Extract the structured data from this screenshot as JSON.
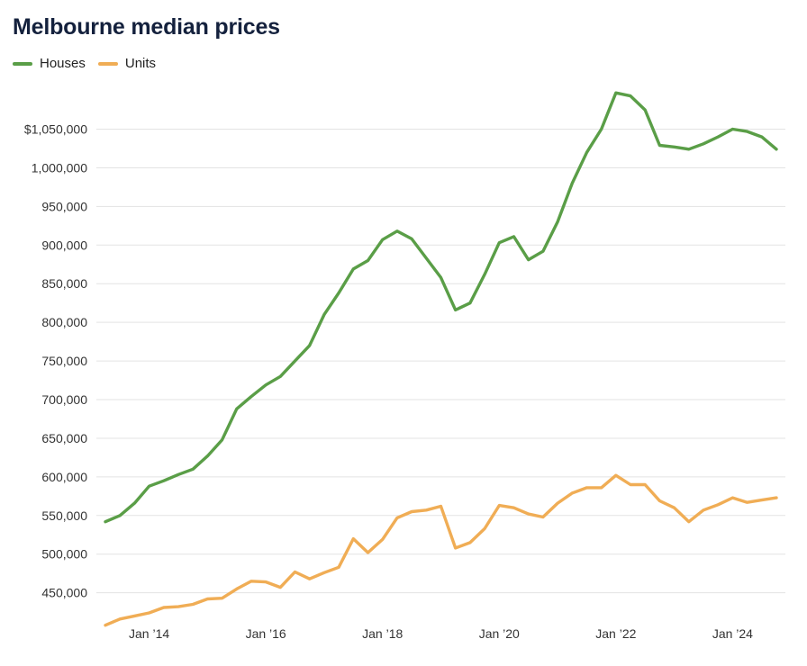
{
  "chart_data": {
    "type": "line",
    "title": "Melbourne median prices",
    "xlabel": "",
    "ylabel": "",
    "legend_position": "top-left",
    "grid": true,
    "ylim": [
      410000,
      1110000
    ],
    "x_start": "2013-04",
    "x_end": "2024-10",
    "x_step_months": 3,
    "x_ticks": [
      {
        "label": "Jan ’14",
        "x": "2014-01"
      },
      {
        "label": "Jan ’16",
        "x": "2016-01"
      },
      {
        "label": "Jan ’18",
        "x": "2018-01"
      },
      {
        "label": "Jan ’20",
        "x": "2020-01"
      },
      {
        "label": "Jan ’22",
        "x": "2022-01"
      },
      {
        "label": "Jan ’24",
        "x": "2024-01"
      }
    ],
    "y_ticks": [
      {
        "value": 450000,
        "label": "450,000"
      },
      {
        "value": 500000,
        "label": "500,000"
      },
      {
        "value": 550000,
        "label": "550,000"
      },
      {
        "value": 600000,
        "label": "600,000"
      },
      {
        "value": 650000,
        "label": "650,000"
      },
      {
        "value": 700000,
        "label": "700,000"
      },
      {
        "value": 750000,
        "label": "750,000"
      },
      {
        "value": 800000,
        "label": "800,000"
      },
      {
        "value": 850000,
        "label": "850,000"
      },
      {
        "value": 900000,
        "label": "900,000"
      },
      {
        "value": 950000,
        "label": "950,000"
      },
      {
        "value": 1000000,
        "label": "1,000,000"
      },
      {
        "value": 1050000,
        "label": "$1,050,000"
      }
    ],
    "series": [
      {
        "name": "Houses",
        "color": "#5a9e47",
        "values": [
          542000,
          550000,
          566000,
          588000,
          595000,
          603000,
          610000,
          627000,
          648000,
          688000,
          704000,
          719000,
          730000,
          750000,
          770000,
          810000,
          838000,
          869000,
          880000,
          907000,
          918000,
          908000,
          883000,
          858000,
          816000,
          825000,
          862000,
          903000,
          911000,
          881000,
          892000,
          930000,
          980000,
          1020000,
          1050000,
          1097000,
          1093000,
          1075000,
          1029000,
          1027000,
          1024000,
          1031000,
          1040000,
          1050000,
          1047000,
          1040000,
          1024000
        ]
      },
      {
        "name": "Units",
        "color": "#f0ad55",
        "values": [
          408000,
          416000,
          420000,
          424000,
          431000,
          432000,
          435000,
          442000,
          443000,
          455000,
          465000,
          464000,
          457000,
          477000,
          468000,
          476000,
          483000,
          520000,
          502000,
          519000,
          547000,
          555000,
          557000,
          562000,
          508000,
          515000,
          533000,
          563000,
          560000,
          552000,
          548000,
          566000,
          579000,
          586000,
          586000,
          602000,
          590000,
          590000,
          569000,
          560000,
          542000,
          557000,
          564000,
          573000,
          567000,
          570000,
          573000
        ]
      }
    ]
  }
}
